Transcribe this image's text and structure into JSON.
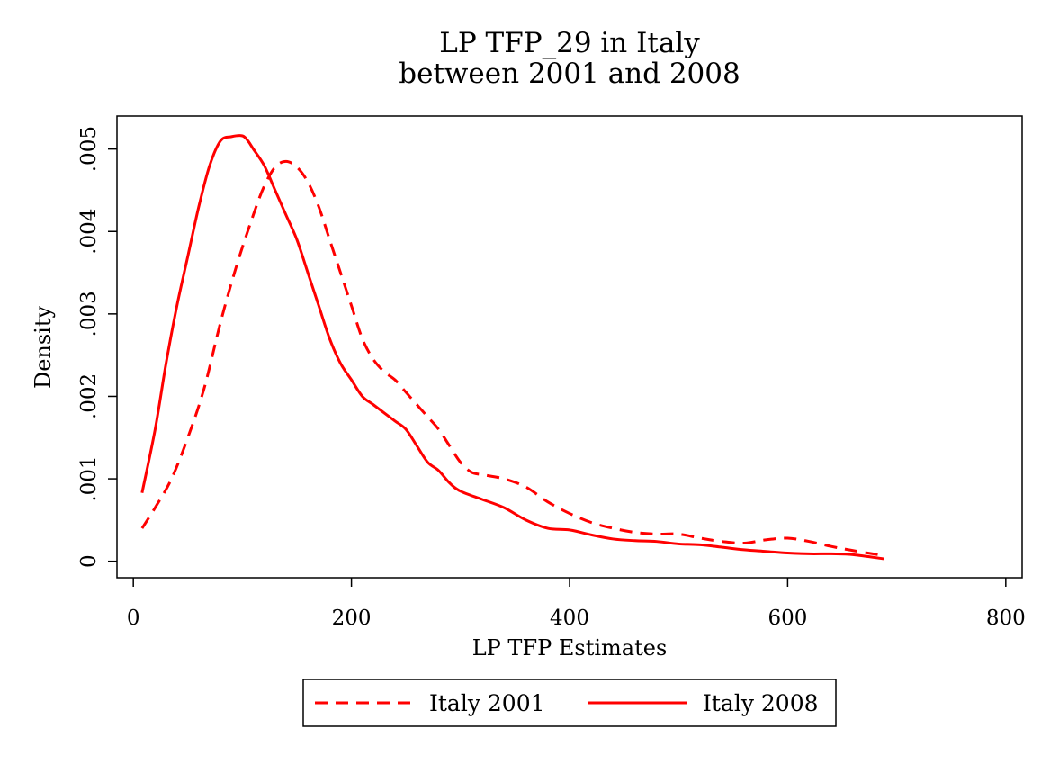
{
  "chart_data": {
    "type": "line",
    "title": "LP TFP_29 in Italy",
    "subtitle": "between 2001 and 2008",
    "xlabel": "LP TFP Estimates",
    "ylabel": "Density",
    "xlim": [
      -15,
      815
    ],
    "ylim": [
      -0.0002,
      0.0054
    ],
    "xticks": [
      0,
      200,
      400,
      600,
      800
    ],
    "xtick_labels": [
      "0",
      "200",
      "400",
      "600",
      "800"
    ],
    "yticks": [
      0,
      0.001,
      0.002,
      0.003,
      0.004,
      0.005
    ],
    "ytick_labels": [
      "0",
      ".001",
      ".002",
      ".003",
      ".004",
      ".005"
    ],
    "grid": false,
    "legend_position": "bottom",
    "series": [
      {
        "name": "Italy 2001",
        "style": "dashed",
        "color": "#ff0000",
        "x": [
          8,
          20,
          35,
          50,
          65,
          80,
          95,
          110,
          120,
          130,
          140,
          150,
          160,
          170,
          180,
          190,
          200,
          210,
          220,
          230,
          240,
          250,
          260,
          270,
          280,
          290,
          300,
          310,
          320,
          340,
          360,
          380,
          400,
          420,
          440,
          460,
          480,
          500,
          520,
          540,
          560,
          580,
          600,
          620,
          640,
          660,
          688
        ],
        "y": [
          0.0004,
          0.00065,
          0.001,
          0.0015,
          0.0021,
          0.0029,
          0.0036,
          0.0042,
          0.00455,
          0.00478,
          0.00485,
          0.00478,
          0.0046,
          0.0043,
          0.0039,
          0.0035,
          0.0031,
          0.0027,
          0.00245,
          0.0023,
          0.0022,
          0.00205,
          0.0019,
          0.00175,
          0.0016,
          0.0014,
          0.0012,
          0.00108,
          0.00105,
          0.001,
          0.0009,
          0.00072,
          0.00058,
          0.00047,
          0.0004,
          0.00035,
          0.00033,
          0.00033,
          0.00028,
          0.00024,
          0.00022,
          0.00026,
          0.00028,
          0.00024,
          0.00018,
          0.00013,
          7e-05
        ]
      },
      {
        "name": "Italy 2008",
        "style": "solid",
        "color": "#ff0000",
        "x": [
          8,
          20,
          30,
          40,
          50,
          60,
          70,
          80,
          90,
          100,
          105,
          110,
          120,
          130,
          140,
          150,
          160,
          170,
          180,
          190,
          200,
          210,
          220,
          230,
          240,
          250,
          260,
          270,
          280,
          290,
          300,
          320,
          340,
          360,
          380,
          400,
          420,
          440,
          460,
          480,
          500,
          520,
          540,
          560,
          580,
          600,
          620,
          640,
          660,
          688
        ],
        "y": [
          0.00083,
          0.0016,
          0.0024,
          0.0031,
          0.0037,
          0.0043,
          0.0048,
          0.0051,
          0.00515,
          0.00516,
          0.0051,
          0.005,
          0.0048,
          0.0045,
          0.0042,
          0.0039,
          0.0035,
          0.0031,
          0.0027,
          0.0024,
          0.0022,
          0.002,
          0.0019,
          0.0018,
          0.0017,
          0.0016,
          0.0014,
          0.0012,
          0.0011,
          0.00095,
          0.00085,
          0.00075,
          0.00065,
          0.0005,
          0.0004,
          0.00038,
          0.00032,
          0.00027,
          0.00025,
          0.00024,
          0.00021,
          0.0002,
          0.00017,
          0.00014,
          0.00012,
          0.0001,
          9e-05,
          9e-05,
          8e-05,
          3e-05
        ]
      }
    ]
  }
}
